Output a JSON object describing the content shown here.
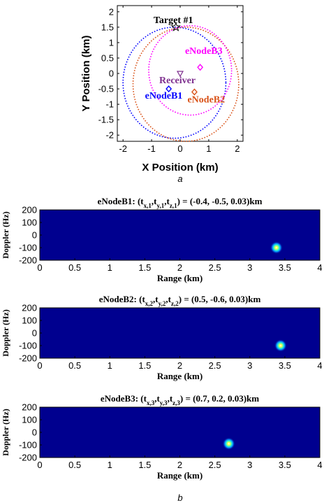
{
  "chart_data": [
    {
      "type": "scatter",
      "caption": "a",
      "xlabel": "X Position (km)",
      "ylabel": "Y Position (km)",
      "xlim": [
        -2.2,
        2.2
      ],
      "ylim": [
        -2.2,
        2.2
      ],
      "xticks": [
        "-2",
        "-1",
        "0",
        "1",
        "2"
      ],
      "yticks": [
        "2",
        "1.5",
        "1",
        "0.5",
        "0",
        "-0.5",
        "-1",
        "-1.5",
        "-2"
      ],
      "points": [
        {
          "label": "Target #1",
          "x": -0.15,
          "y": 1.5,
          "color": "#000000",
          "marker": "star"
        },
        {
          "label": "Receiver",
          "x": 0.0,
          "y": 0.0,
          "color": "#7e2f8e",
          "marker": "triangle-down"
        },
        {
          "label": "eNodeB1",
          "x": -0.4,
          "y": -0.5,
          "color": "#0000ff",
          "marker": "diamond"
        },
        {
          "label": "eNodeB2",
          "x": 0.5,
          "y": -0.6,
          "color": "#d95319",
          "marker": "diamond"
        },
        {
          "label": "eNodeB3",
          "x": 0.7,
          "y": 0.2,
          "color": "#ff00ff",
          "marker": "diamond"
        }
      ],
      "circles": [
        {
          "cx": -0.2,
          "cy": -0.3,
          "r": 1.8,
          "color": "#0000ff"
        },
        {
          "cx": 0.2,
          "cy": -0.35,
          "r": 1.85,
          "color": "#d95319"
        },
        {
          "cx": 0.35,
          "cy": 0.1,
          "r": 1.45,
          "color": "#ff00ff"
        }
      ]
    },
    {
      "type": "heatmap",
      "title_prefix": "eNodeB1: (t",
      "title_suffix": ") = (-0.4, -0.5, 0.03)km",
      "subscript_index": "1",
      "xlabel": "Range (km)",
      "ylabel": "Doppler (Hz)",
      "xlim": [
        0,
        4
      ],
      "ylim": [
        -200,
        200
      ],
      "xticks": [
        "0",
        "0.5",
        "1",
        "1.5",
        "2",
        "2.5",
        "3",
        "3.5",
        "4"
      ],
      "yticks": [
        "200",
        "100",
        "0",
        "-100",
        "-200"
      ],
      "peak": {
        "range_km": 3.38,
        "doppler_hz": -100
      }
    },
    {
      "type": "heatmap",
      "title_prefix": "eNodeB2: (t",
      "title_suffix": ") = (0.5, -0.6, 0.03)km",
      "subscript_index": "2",
      "xlabel": "Range (km)",
      "ylabel": "Doppler (Hz)",
      "xlim": [
        0,
        4
      ],
      "ylim": [
        -200,
        200
      ],
      "xticks": [
        "0",
        "0.5",
        "1",
        "1.5",
        "2",
        "2.5",
        "3",
        "3.5",
        "4"
      ],
      "yticks": [
        "200",
        "100",
        "0",
        "-100",
        "-200"
      ],
      "peak": {
        "range_km": 3.44,
        "doppler_hz": -100
      }
    },
    {
      "type": "heatmap",
      "title_prefix": "eNodeB3: (t",
      "title_suffix": ") = (0.7, 0.2, 0.03)km",
      "subscript_index": "3",
      "xlabel": "Range (km)",
      "ylabel": "Doppler (Hz)",
      "xlim": [
        0,
        4
      ],
      "ylim": [
        -200,
        200
      ],
      "xticks": [
        "0",
        "0.5",
        "1",
        "1.5",
        "2",
        "2.5",
        "3",
        "3.5",
        "4"
      ],
      "yticks": [
        "200",
        "100",
        "0",
        "-100",
        "-200"
      ],
      "peak": {
        "range_km": 2.7,
        "doppler_hz": -90
      }
    }
  ],
  "figure_caption_b": "b",
  "colors": {
    "heatmap_bg": "#00008f",
    "axis": "#000000"
  }
}
